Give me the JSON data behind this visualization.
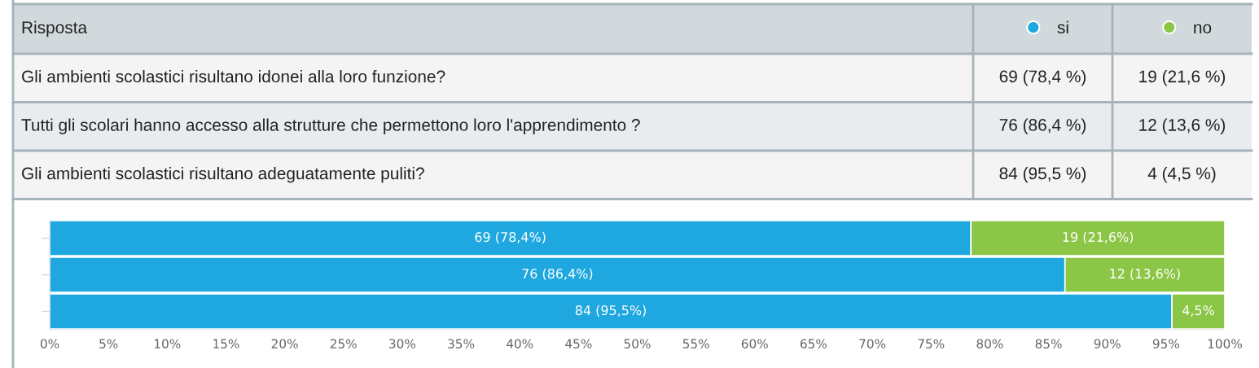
{
  "chart_data": {
    "type": "bar",
    "orientation": "horizontal",
    "stacked": true,
    "legend_title": "Risposta",
    "legend": "top",
    "tick_labels": "x",
    "categories": [
      null,
      null,
      null
    ],
    "series": [
      {
        "name": "si",
        "color": "#1fa8e0",
        "values": [
          78.4,
          86.4,
          95.5
        ],
        "value_labels": [
          "69 (78,4%)",
          "76 (86,4%)",
          "84 (95,5%)"
        ]
      },
      {
        "name": "no",
        "color": "#8bc646",
        "values": [
          21.6,
          13.6,
          4.5
        ],
        "value_labels": [
          "19 (21,6%)",
          "12 (13,6%)",
          "4,5%"
        ]
      }
    ],
    "xlim": [
      0,
      100
    ],
    "xticks": [
      {
        "value": 0,
        "label": "0%"
      },
      {
        "value": 5,
        "label": "5%"
      },
      {
        "value": 10,
        "label": "10%"
      },
      {
        "value": 15,
        "label": "15%"
      },
      {
        "value": 20,
        "label": "20%"
      },
      {
        "value": 25,
        "label": "25%"
      },
      {
        "value": 30,
        "label": "30%"
      },
      {
        "value": 35,
        "label": "35%"
      },
      {
        "value": 40,
        "label": "40%"
      },
      {
        "value": 45,
        "label": "45%"
      },
      {
        "value": 50,
        "label": "50%"
      },
      {
        "value": 55,
        "label": "55%"
      },
      {
        "value": 60,
        "label": "60%"
      },
      {
        "value": 65,
        "label": "65%"
      },
      {
        "value": 70,
        "label": "70%"
      },
      {
        "value": 75,
        "label": "75%"
      },
      {
        "value": 80,
        "label": "80%"
      },
      {
        "value": 85,
        "label": "85%"
      },
      {
        "value": 90,
        "label": "90%"
      },
      {
        "value": 95,
        "label": "95%"
      },
      {
        "value": 100,
        "label": "100%"
      }
    ],
    "annotations": [
      "Gli ambienti scolastici risultano idonei alla loro funzione?",
      "69 (78,4 %)",
      "19 (21,6 %)",
      "Tutti gli scolari hanno accesso alla strutture che permettono loro l'apprendimento ?",
      "76 (86,4 %)",
      "12 (13,6 %)",
      "Gli ambienti scolastici risultano adeguatamente puliti?",
      "84 (95,5 %)",
      "4 (4,5 %)"
    ]
  }
}
